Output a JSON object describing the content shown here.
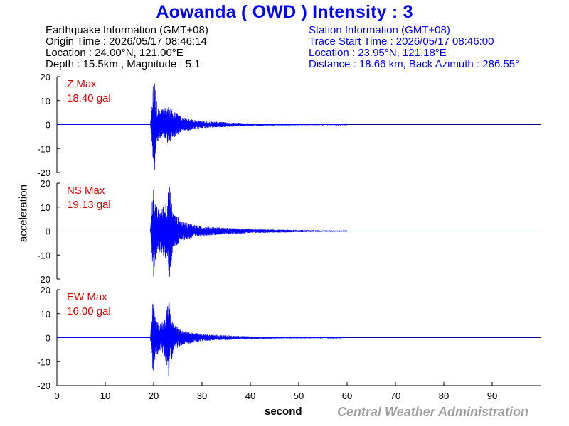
{
  "title": "Aowanda  ( OWD )  Intensity : 3",
  "earthquake_info": {
    "header": "Earthquake Information  (GMT+08)",
    "origin_time": "Origin Time : 2026/05/17 08:46:14",
    "location": "Location : 24.00°N, 121.00°E",
    "depth_magnitude": "Depth : 15.5km , Magnitude : 5.1"
  },
  "station_info": {
    "header": "Station Information  (GMT+08)",
    "trace_start": "Trace Start Time : 2026/05/17 08:46:00",
    "location": "Location : 23.95°N, 121.18°E",
    "distance": "Distance : 18.66 km, Back Azimuth : 286.55°"
  },
  "ylabel": "acceleration",
  "xlabel": "second",
  "agency": "Central Weather Administration",
  "colors": {
    "title": "#0000ff",
    "trace": "#0000ff",
    "max_label": "#e00000",
    "agency": "#a0a0a0"
  },
  "chart_data": {
    "type": "line",
    "xlim": [
      0,
      100
    ],
    "ylim": [
      -20,
      20
    ],
    "x_ticks": [
      0,
      10,
      20,
      30,
      40,
      50,
      60,
      70,
      80,
      90
    ],
    "y_ticks": [
      20,
      10,
      0,
      -10,
      -20
    ],
    "ylabel": "acceleration",
    "xlabel": "second",
    "panels": [
      {
        "component": "Z",
        "max_label": "Z Max",
        "max_value": "18.40 gal",
        "envelope": [
          {
            "x": 0,
            "y": 0
          },
          {
            "x": 19.3,
            "y": 0
          },
          {
            "x": 19.6,
            "y": 6
          },
          {
            "x": 19.9,
            "y": 16
          },
          {
            "x": 20.2,
            "y": -19
          },
          {
            "x": 20.6,
            "y": 10
          },
          {
            "x": 21.2,
            "y": 6
          },
          {
            "x": 22.0,
            "y": 7
          },
          {
            "x": 23.2,
            "y": 8
          },
          {
            "x": 24.0,
            "y": 6
          },
          {
            "x": 26.0,
            "y": 3
          },
          {
            "x": 30.0,
            "y": 1.5
          },
          {
            "x": 40.0,
            "y": 0.5
          },
          {
            "x": 55.0,
            "y": 0.2
          },
          {
            "x": 100,
            "y": 0
          }
        ]
      },
      {
        "component": "NS",
        "max_label": "NS Max",
        "max_value": "19.13 gal",
        "envelope": [
          {
            "x": 0,
            "y": 0
          },
          {
            "x": 19.3,
            "y": 0
          },
          {
            "x": 19.7,
            "y": 12
          },
          {
            "x": 20.0,
            "y": -19
          },
          {
            "x": 20.5,
            "y": 11
          },
          {
            "x": 21.0,
            "y": 9
          },
          {
            "x": 22.0,
            "y": 10
          },
          {
            "x": 23.0,
            "y": 16
          },
          {
            "x": 23.3,
            "y": -19
          },
          {
            "x": 24.0,
            "y": 8
          },
          {
            "x": 26.0,
            "y": 4
          },
          {
            "x": 30.0,
            "y": 2
          },
          {
            "x": 40.0,
            "y": 0.8
          },
          {
            "x": 55.0,
            "y": 0.3
          },
          {
            "x": 100,
            "y": 0
          }
        ]
      },
      {
        "component": "EW",
        "max_label": "EW Max",
        "max_value": "16.00 gal",
        "envelope": [
          {
            "x": 0,
            "y": 0
          },
          {
            "x": 19.3,
            "y": 0
          },
          {
            "x": 19.8,
            "y": 14
          },
          {
            "x": 20.0,
            "y": -14
          },
          {
            "x": 20.5,
            "y": 8
          },
          {
            "x": 21.2,
            "y": 6
          },
          {
            "x": 22.0,
            "y": 7
          },
          {
            "x": 22.9,
            "y": 13
          },
          {
            "x": 23.1,
            "y": -16
          },
          {
            "x": 24.0,
            "y": 6
          },
          {
            "x": 26.0,
            "y": 3
          },
          {
            "x": 30.0,
            "y": 1.5
          },
          {
            "x": 40.0,
            "y": 0.5
          },
          {
            "x": 55.0,
            "y": 0.2
          },
          {
            "x": 100,
            "y": 0
          }
        ]
      }
    ]
  }
}
